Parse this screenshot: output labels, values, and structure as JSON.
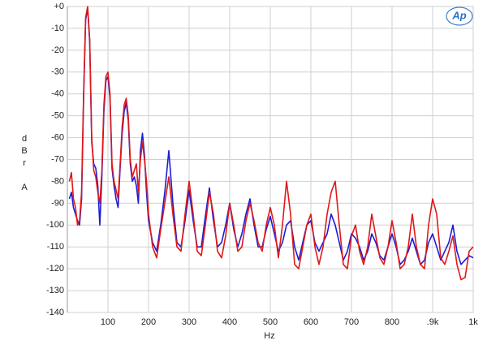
{
  "chart_data": {
    "type": "line",
    "logo": "Ap",
    "x_label": "Hz",
    "y_label": "dBr A",
    "xlim": [
      0,
      1000
    ],
    "ylim": [
      -140,
      0
    ],
    "xticks": [
      100,
      200,
      300,
      400,
      500,
      600,
      700,
      800,
      {
        "value": 900,
        "label": ".9k"
      },
      {
        "value": 1000,
        "label": "1k"
      }
    ],
    "yticks": [
      {
        "value": 0,
        "label": "+0"
      },
      -10,
      -20,
      -30,
      -40,
      -50,
      -60,
      -70,
      -80,
      -90,
      -100,
      -110,
      -120,
      -130,
      -140
    ],
    "grid": true,
    "x": [
      5,
      10,
      15,
      20,
      25,
      30,
      35,
      40,
      45,
      50,
      55,
      60,
      65,
      70,
      75,
      80,
      85,
      90,
      95,
      100,
      105,
      110,
      115,
      120,
      125,
      130,
      135,
      140,
      145,
      150,
      155,
      160,
      165,
      170,
      175,
      180,
      185,
      190,
      195,
      200,
      210,
      220,
      230,
      240,
      250,
      260,
      270,
      280,
      290,
      300,
      310,
      320,
      330,
      340,
      350,
      360,
      370,
      380,
      390,
      400,
      410,
      420,
      430,
      440,
      450,
      460,
      470,
      480,
      490,
      500,
      510,
      520,
      530,
      540,
      550,
      560,
      570,
      580,
      590,
      600,
      610,
      620,
      630,
      640,
      650,
      660,
      670,
      680,
      690,
      700,
      710,
      720,
      730,
      740,
      750,
      760,
      770,
      780,
      790,
      800,
      810,
      820,
      830,
      840,
      850,
      860,
      870,
      880,
      890,
      900,
      910,
      920,
      930,
      940,
      950,
      960,
      970,
      980,
      990,
      1000
    ],
    "series": [
      {
        "color": "#1c1cd8",
        "values": [
          -88,
          -85,
          -92,
          -95,
          -98,
          -100,
          -88,
          -42,
          -6,
          -1,
          -16,
          -62,
          -72,
          -74,
          -82,
          -100,
          -78,
          -48,
          -34,
          -32,
          -42,
          -74,
          -82,
          -88,
          -92,
          -74,
          -58,
          -48,
          -44,
          -52,
          -72,
          -80,
          -78,
          -82,
          -90,
          -66,
          -58,
          -68,
          -85,
          -98,
          -108,
          -112,
          -100,
          -85,
          -66,
          -90,
          -108,
          -110,
          -98,
          -84,
          -98,
          -110,
          -110,
          -96,
          -83,
          -98,
          -110,
          -108,
          -100,
          -90,
          -102,
          -110,
          -104,
          -95,
          -88,
          -100,
          -110,
          -110,
          -102,
          -96,
          -104,
          -112,
          -108,
          -100,
          -98,
          -110,
          -116,
          -108,
          -100,
          -98,
          -108,
          -112,
          -108,
          -104,
          -95,
          -100,
          -108,
          -116,
          -112,
          -104,
          -106,
          -110,
          -116,
          -112,
          -104,
          -108,
          -114,
          -116,
          -110,
          -104,
          -110,
          -118,
          -116,
          -112,
          -106,
          -112,
          -118,
          -116,
          -108,
          -104,
          -110,
          -116,
          -112,
          -108,
          -100,
          -112,
          -118,
          -116,
          -114,
          -115
        ]
      },
      {
        "color": "#e01818",
        "values": [
          -80,
          -76,
          -88,
          -92,
          -100,
          -98,
          -85,
          -40,
          -5,
          0,
          -15,
          -60,
          -75,
          -78,
          -85,
          -90,
          -75,
          -45,
          -32,
          -30,
          -40,
          -72,
          -80,
          -84,
          -88,
          -72,
          -55,
          -45,
          -42,
          -50,
          -70,
          -78,
          -75,
          -72,
          -85,
          -70,
          -62,
          -70,
          -80,
          -95,
          -110,
          -115,
          -102,
          -90,
          -78,
          -95,
          -110,
          -112,
          -95,
          -80,
          -95,
          -112,
          -114,
          -100,
          -85,
          -95,
          -112,
          -115,
          -105,
          -90,
          -100,
          -112,
          -110,
          -98,
          -90,
          -98,
          -108,
          -112,
          -100,
          -92,
          -100,
          -115,
          -100,
          -80,
          -95,
          -118,
          -120,
          -110,
          -100,
          -95,
          -110,
          -118,
          -110,
          -95,
          -85,
          -80,
          -100,
          -118,
          -120,
          -105,
          -100,
          -112,
          -118,
          -110,
          -95,
          -105,
          -115,
          -118,
          -110,
          -98,
          -108,
          -120,
          -118,
          -110,
          -95,
          -110,
          -118,
          -120,
          -100,
          -88,
          -95,
          -115,
          -118,
          -112,
          -105,
          -118,
          -125,
          -124,
          -112,
          -110
        ]
      }
    ]
  }
}
